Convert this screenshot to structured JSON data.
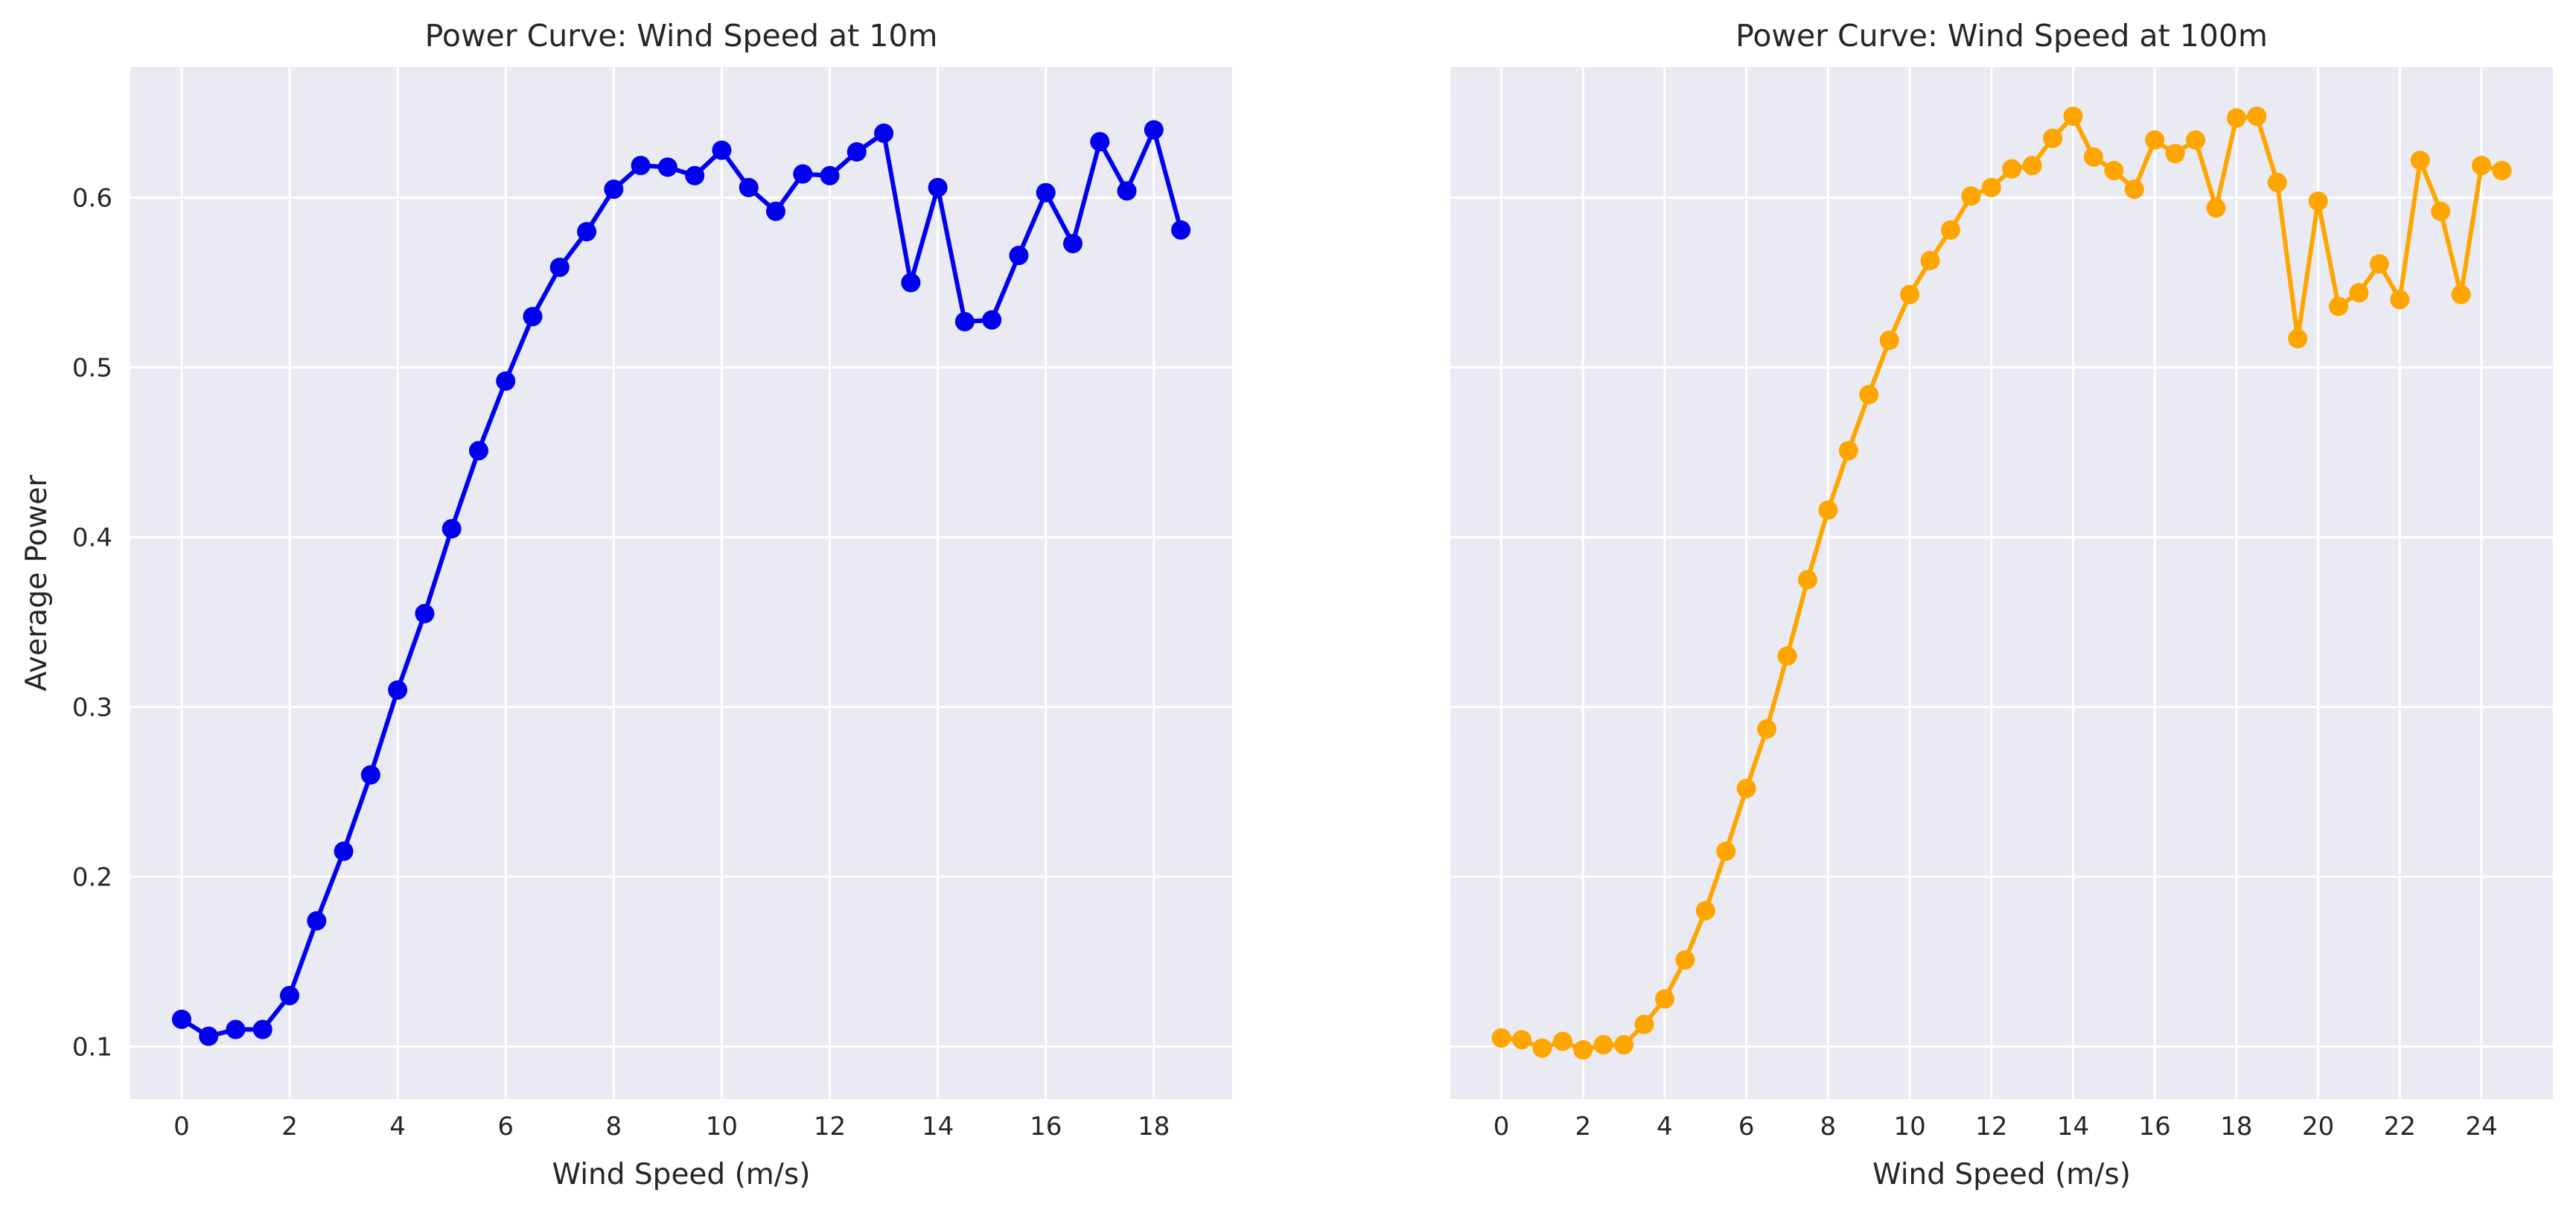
{
  "chart_data": [
    {
      "type": "line",
      "title": "Power Curve: Wind Speed at 10m",
      "xlabel": "Wind Speed (m/s)",
      "ylabel": "Average Power",
      "xlim": [
        -0.95,
        19.45
      ],
      "ylim": [
        0.069,
        0.677
      ],
      "xticks": [
        0,
        2,
        4,
        6,
        8,
        10,
        12,
        14,
        16,
        18
      ],
      "yticks": [
        0.1,
        0.2,
        0.3,
        0.4,
        0.5,
        0.6
      ],
      "grid": true,
      "color": "#0000ee",
      "marker": "circle",
      "x": [
        0,
        0.5,
        1,
        1.5,
        2,
        2.5,
        3,
        3.5,
        4,
        4.5,
        5,
        5.5,
        6,
        6.5,
        7,
        7.5,
        8,
        8.5,
        9,
        9.5,
        10,
        10.5,
        11,
        11.5,
        12,
        12.5,
        13,
        13.5,
        14,
        14.5,
        15,
        15.5,
        16,
        16.5,
        17,
        17.5,
        18,
        18.5
      ],
      "y": [
        0.116,
        0.106,
        0.11,
        0.11,
        0.13,
        0.174,
        0.215,
        0.26,
        0.31,
        0.355,
        0.405,
        0.451,
        0.492,
        0.53,
        0.559,
        0.58,
        0.605,
        0.619,
        0.618,
        0.613,
        0.628,
        0.606,
        0.592,
        0.614,
        0.613,
        0.627,
        0.638,
        0.55,
        0.606,
        0.527,
        0.528,
        0.566,
        0.603,
        0.573,
        0.633,
        0.604,
        0.64,
        0.581
      ]
    },
    {
      "type": "line",
      "title": "Power Curve: Wind Speed at 100m",
      "xlabel": "Wind Speed (m/s)",
      "ylabel": "",
      "xlim": [
        -1.25,
        25.75
      ],
      "ylim": [
        0.069,
        0.677
      ],
      "xticks": [
        0,
        2,
        4,
        6,
        8,
        10,
        12,
        14,
        16,
        18,
        20,
        22,
        24
      ],
      "yticks": [
        0.1,
        0.2,
        0.3,
        0.4,
        0.5,
        0.6
      ],
      "grid": true,
      "color": "#ffa500",
      "marker": "circle",
      "x": [
        0,
        0.5,
        1,
        1.5,
        2,
        2.5,
        3,
        3.5,
        4,
        4.5,
        5,
        5.5,
        6,
        6.5,
        7,
        7.5,
        8,
        8.5,
        9,
        9.5,
        10,
        10.5,
        11,
        11.5,
        12,
        12.5,
        13,
        13.5,
        14,
        14.5,
        15,
        15.5,
        16,
        16.5,
        17,
        17.5,
        18,
        18.5,
        19,
        19.5,
        20,
        20.5,
        21,
        21.5,
        22,
        22.5,
        23,
        23.5,
        24,
        24.5
      ],
      "y": [
        0.105,
        0.104,
        0.099,
        0.103,
        0.098,
        0.101,
        0.101,
        0.113,
        0.128,
        0.151,
        0.18,
        0.215,
        0.252,
        0.287,
        0.33,
        0.375,
        0.416,
        0.451,
        0.484,
        0.516,
        0.543,
        0.563,
        0.581,
        0.601,
        0.606,
        0.617,
        0.619,
        0.635,
        0.648,
        0.624,
        0.616,
        0.605,
        0.634,
        0.626,
        0.634,
        0.594,
        0.647,
        0.648,
        0.609,
        0.517,
        0.598,
        0.536,
        0.544,
        0.561,
        0.54,
        0.622,
        0.592,
        0.543,
        0.619,
        0.616
      ]
    }
  ]
}
